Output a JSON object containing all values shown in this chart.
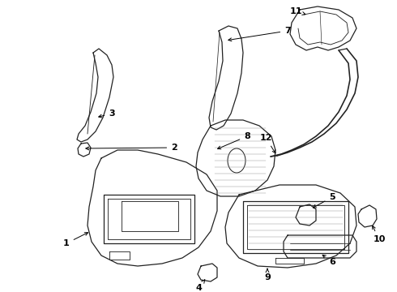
{
  "bg_color": "#ffffff",
  "line_color": "#222222",
  "parts": {
    "part1_label": [
      "1",
      0.095,
      0.74
    ],
    "part2_label": [
      "2",
      0.215,
      0.52
    ],
    "part3_label": [
      "3",
      0.155,
      0.3
    ],
    "part4_label": [
      "4",
      0.265,
      0.92
    ],
    "part5_label": [
      "5",
      0.575,
      0.735
    ],
    "part6_label": [
      "6",
      0.575,
      0.9
    ],
    "part7_label": [
      "7",
      0.37,
      0.115
    ],
    "part8_label": [
      "8",
      0.315,
      0.42
    ],
    "part9_label": [
      "9",
      0.355,
      0.84
    ],
    "part10_label": [
      "10",
      0.61,
      0.72
    ],
    "part11_label": [
      "11",
      0.735,
      0.05
    ],
    "part12_label": [
      "12",
      0.655,
      0.3
    ]
  }
}
